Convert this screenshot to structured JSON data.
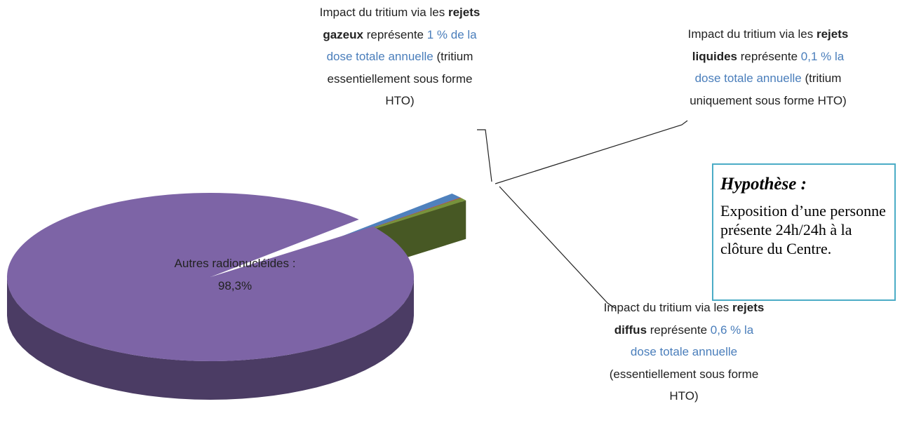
{
  "chart_data": {
    "type": "pie",
    "three_d": true,
    "values": [
      98.3,
      1,
      0.1,
      0.6
    ],
    "value_labels": [
      "98,3%",
      "1 %",
      "0,1 %",
      "0,6 %"
    ],
    "colors": [
      "#7d64a6",
      "#4f81bd",
      "#c0504d",
      "#77933c"
    ],
    "slices": [
      {
        "name": "Autres radionucléides :"
      },
      {
        "lead": "Impact du tritium via les",
        "bold": "rejets gazeux",
        "verb": "représente",
        "tail": "de la dose totale annuelle",
        "note": "(tritium essentiellement sous forme HTO)"
      },
      {
        "lead": "Impact du tritium via les",
        "bold": "rejets liquides",
        "verb": "représente",
        "tail": "la dose totale annuelle",
        "note": "(tritium uniquement sous forme HTO)"
      },
      {
        "lead": "Impact du tritium via les",
        "bold": "rejets diffus",
        "verb": "représente",
        "tail": "la dose totale annuelle",
        "note": "(essentiellement sous forme HTO)"
      }
    ],
    "hypothesis": {
      "title": "Hypothèse :",
      "text": "Exposition d’une personne présente 24h/24h à la clôture du Centre."
    }
  }
}
